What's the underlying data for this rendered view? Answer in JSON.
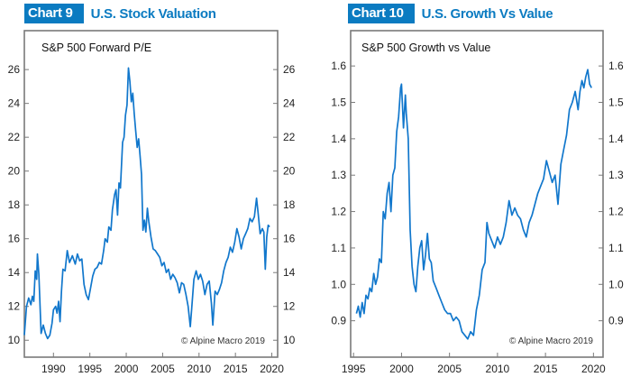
{
  "charts": [
    {
      "badge": "Chart 9",
      "header": "U.S. Stock Valuation",
      "copyright": "© Alpine Macro 2019",
      "accent_color": "#0b7bc1",
      "line_color": "#1177cc"
    },
    {
      "badge": "Chart 10",
      "header": "U.S. Growth Vs Value",
      "copyright": "© Alpine Macro 2019",
      "accent_color": "#0b7bc1",
      "line_color": "#1177cc"
    }
  ],
  "chart_data": [
    {
      "type": "line",
      "title": "S&P 500 Forward P/E",
      "xlabel": "",
      "ylabel": "",
      "xlim": [
        1986.0,
        2020.8
      ],
      "ylim": [
        9.0,
        28.3
      ],
      "xticks": [
        1990,
        1995,
        2000,
        2005,
        2010,
        2015,
        2020
      ],
      "yticks": [
        10,
        12,
        14,
        16,
        18,
        20,
        22,
        24,
        26
      ],
      "grid": false,
      "legend": "none",
      "series": [
        {
          "name": "S&P 500 Forward P/E",
          "x": [
            1986.0,
            1986.3,
            1986.6,
            1986.9,
            1987.1,
            1987.3,
            1987.5,
            1987.7,
            1987.8,
            1988.0,
            1988.3,
            1988.6,
            1988.9,
            1989.2,
            1989.5,
            1989.8,
            1990.0,
            1990.3,
            1990.5,
            1990.7,
            1990.9,
            1991.1,
            1991.3,
            1991.6,
            1991.9,
            1992.2,
            1992.6,
            1993.0,
            1993.3,
            1993.6,
            1993.9,
            1994.2,
            1994.5,
            1994.8,
            1995.1,
            1995.4,
            1995.7,
            1996.0,
            1996.3,
            1996.6,
            1996.9,
            1997.1,
            1997.4,
            1997.6,
            1997.9,
            1998.1,
            1998.4,
            1998.6,
            1998.8,
            1999.0,
            1999.2,
            1999.5,
            1999.7,
            1999.9,
            2000.1,
            2000.3,
            2000.5,
            2000.7,
            2000.9,
            2001.1,
            2001.3,
            2001.5,
            2001.7,
            2001.9,
            2002.1,
            2002.3,
            2002.5,
            2002.7,
            2002.9,
            2003.1,
            2003.4,
            2003.7,
            2004.0,
            2004.3,
            2004.6,
            2004.9,
            2005.2,
            2005.5,
            2005.8,
            2006.1,
            2006.4,
            2006.7,
            2007.0,
            2007.3,
            2007.6,
            2007.9,
            2008.2,
            2008.5,
            2008.8,
            2009.0,
            2009.3,
            2009.6,
            2009.9,
            2010.2,
            2010.5,
            2010.8,
            2011.1,
            2011.4,
            2011.7,
            2011.9,
            2012.2,
            2012.5,
            2012.8,
            2013.1,
            2013.4,
            2013.7,
            2014.0,
            2014.3,
            2014.6,
            2014.9,
            2015.2,
            2015.5,
            2015.8,
            2016.1,
            2016.4,
            2016.7,
            2017.0,
            2017.3,
            2017.6,
            2017.9,
            2018.1,
            2018.4,
            2018.7,
            2018.9,
            2019.1,
            2019.3,
            2019.5,
            2019.7
          ],
          "y": [
            10.3,
            12.0,
            12.5,
            12.1,
            12.6,
            12.3,
            14.1,
            13.6,
            15.1,
            13.9,
            10.4,
            10.9,
            10.4,
            10.1,
            10.3,
            11.0,
            11.8,
            12.0,
            11.6,
            12.3,
            11.1,
            12.9,
            14.2,
            14.1,
            15.3,
            14.6,
            15.0,
            14.5,
            15.1,
            14.7,
            14.8,
            13.3,
            12.7,
            12.4,
            13.1,
            13.8,
            14.2,
            14.3,
            14.6,
            14.5,
            15.3,
            16.0,
            15.8,
            16.7,
            16.5,
            17.7,
            18.6,
            18.9,
            17.4,
            19.3,
            19.0,
            21.7,
            22.0,
            23.3,
            23.9,
            26.1,
            25.3,
            24.1,
            24.6,
            23.4,
            22.4,
            21.4,
            21.9,
            20.9,
            19.8,
            16.5,
            17.1,
            16.4,
            17.8,
            17.0,
            16.1,
            15.4,
            15.3,
            15.1,
            14.9,
            14.4,
            14.6,
            14.0,
            14.2,
            13.6,
            13.9,
            13.7,
            13.4,
            12.8,
            13.4,
            13.3,
            12.7,
            12.0,
            10.8,
            11.9,
            13.6,
            14.1,
            13.6,
            13.9,
            13.5,
            12.7,
            13.3,
            13.5,
            12.2,
            10.9,
            12.9,
            12.7,
            13.0,
            13.4,
            14.1,
            14.6,
            14.9,
            15.5,
            15.2,
            15.8,
            16.6,
            16.1,
            15.4,
            16.0,
            16.3,
            16.6,
            17.2,
            17.0,
            17.3,
            18.4,
            17.6,
            16.3,
            16.6,
            16.4,
            14.2,
            16.1,
            16.8,
            16.7
          ]
        }
      ]
    },
    {
      "type": "line",
      "title": "S&P 500 Growth vs Value",
      "xlabel": "",
      "ylabel": "",
      "xlim": [
        1994.7,
        2021.0
      ],
      "ylim": [
        0.8,
        1.697
      ],
      "xticks": [
        1995,
        2000,
        2005,
        2010,
        2015,
        2020
      ],
      "yticks": [
        0.9,
        1.0,
        1.1,
        1.2,
        1.3,
        1.4,
        1.5,
        1.6
      ],
      "grid": false,
      "legend": "none",
      "series": [
        {
          "name": "S&P 500 Growth vs Value",
          "x": [
            1995.3,
            1995.5,
            1995.7,
            1995.9,
            1996.1,
            1996.3,
            1996.5,
            1996.7,
            1996.9,
            1997.1,
            1997.3,
            1997.5,
            1997.7,
            1997.9,
            1998.1,
            1998.3,
            1998.5,
            1998.7,
            1998.9,
            1999.1,
            1999.3,
            1999.5,
            1999.7,
            1999.9,
            2000.0,
            2000.2,
            2000.4,
            2000.5,
            2000.7,
            2000.9,
            2001.1,
            2001.3,
            2001.5,
            2001.7,
            2001.9,
            2002.1,
            2002.3,
            2002.5,
            2002.7,
            2002.9,
            2003.1,
            2003.3,
            2003.6,
            2003.9,
            2004.2,
            2004.5,
            2004.8,
            2005.1,
            2005.4,
            2005.7,
            2006.0,
            2006.3,
            2006.6,
            2006.9,
            2007.2,
            2007.5,
            2007.8,
            2008.1,
            2008.4,
            2008.7,
            2008.9,
            2009.1,
            2009.4,
            2009.7,
            2010.0,
            2010.3,
            2010.6,
            2010.9,
            2011.2,
            2011.5,
            2011.8,
            2012.1,
            2012.4,
            2012.7,
            2013.0,
            2013.3,
            2013.6,
            2013.9,
            2014.2,
            2014.5,
            2014.8,
            2015.1,
            2015.4,
            2015.7,
            2016.0,
            2016.3,
            2016.6,
            2016.9,
            2017.2,
            2017.5,
            2017.8,
            2018.1,
            2018.4,
            2018.6,
            2018.8,
            2019.0,
            2019.2,
            2019.4,
            2019.6,
            2019.8
          ],
          "y": [
            0.92,
            0.94,
            0.91,
            0.95,
            0.92,
            0.97,
            0.96,
            0.99,
            0.98,
            1.03,
            1.0,
            1.02,
            1.07,
            1.06,
            1.2,
            1.18,
            1.25,
            1.28,
            1.2,
            1.3,
            1.32,
            1.42,
            1.46,
            1.54,
            1.55,
            1.43,
            1.52,
            1.47,
            1.4,
            1.15,
            1.05,
            1.0,
            0.98,
            1.05,
            1.1,
            1.12,
            1.04,
            1.08,
            1.14,
            1.07,
            1.06,
            1.01,
            0.99,
            0.97,
            0.95,
            0.93,
            0.92,
            0.92,
            0.9,
            0.91,
            0.9,
            0.87,
            0.86,
            0.85,
            0.87,
            0.86,
            0.93,
            0.97,
            1.04,
            1.06,
            1.17,
            1.14,
            1.12,
            1.1,
            1.13,
            1.11,
            1.13,
            1.17,
            1.23,
            1.19,
            1.21,
            1.19,
            1.18,
            1.15,
            1.13,
            1.17,
            1.19,
            1.22,
            1.25,
            1.27,
            1.29,
            1.34,
            1.31,
            1.28,
            1.3,
            1.22,
            1.33,
            1.37,
            1.41,
            1.48,
            1.5,
            1.53,
            1.48,
            1.53,
            1.56,
            1.54,
            1.57,
            1.59,
            1.55,
            1.54
          ]
        }
      ]
    }
  ]
}
